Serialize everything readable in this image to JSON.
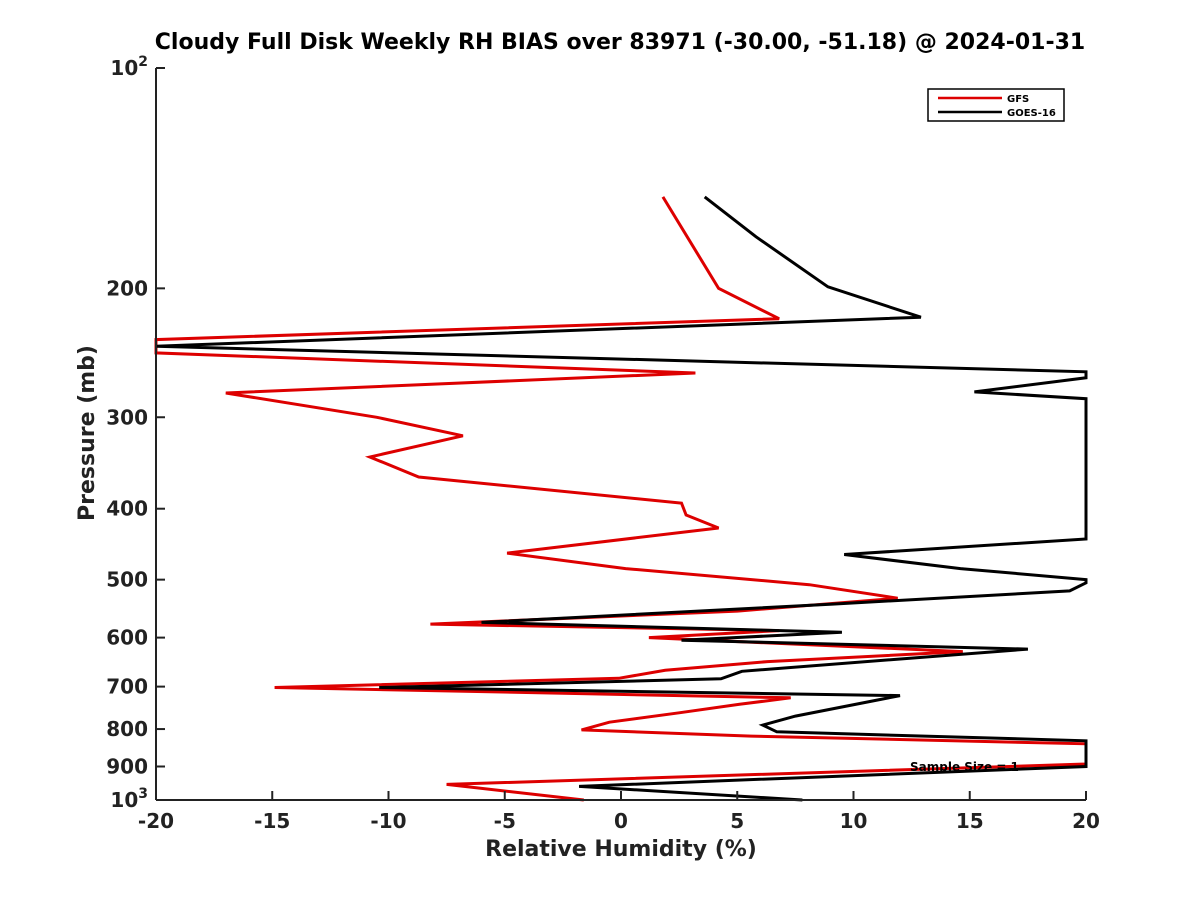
{
  "chart_data": {
    "type": "line",
    "title": "Cloudy Full Disk Weekly RH BIAS over 83971 (-30.00, -51.18) @ 2024-01-31",
    "xlabel": "Relative Humidity (%)",
    "ylabel": "Pressure (mb)",
    "xlim": [
      -20,
      20
    ],
    "ylim": [
      100,
      1000
    ],
    "y_scale": "log",
    "y_reversed": true,
    "x_ticks": [
      "-20",
      "-15",
      "-10",
      "-5",
      "0",
      "5",
      "10",
      "15",
      "20"
    ],
    "y_ticks": [
      {
        "value": 100,
        "base": "10",
        "exp": "2"
      },
      {
        "value": 200,
        "label": "200"
      },
      {
        "value": 300,
        "label": "300"
      },
      {
        "value": 400,
        "label": "400"
      },
      {
        "value": 500,
        "label": "500"
      },
      {
        "value": 600,
        "label": "600"
      },
      {
        "value": 700,
        "label": "700"
      },
      {
        "value": 800,
        "label": "800"
      },
      {
        "value": 900,
        "label": "900"
      },
      {
        "value": 1000,
        "base": "10",
        "exp": "3"
      }
    ],
    "grid": false,
    "legend_position": "top-right",
    "annotation": "Sample Size = 1",
    "series": [
      {
        "name": "GFS",
        "color": "#dd0000",
        "points": [
          [
            1.8,
            150
          ],
          [
            4.2,
            200
          ],
          [
            6.8,
            220
          ],
          [
            -20,
            235
          ],
          [
            -20,
            245
          ],
          [
            3.2,
            261
          ],
          [
            -17,
            278
          ],
          [
            -10.5,
            300
          ],
          [
            -6.8,
            318
          ],
          [
            -10.8,
            340
          ],
          [
            -8.7,
            362
          ],
          [
            2.6,
            393
          ],
          [
            2.8,
            408
          ],
          [
            4.2,
            425
          ],
          [
            -4.9,
            460
          ],
          [
            0.2,
            483
          ],
          [
            8.1,
            508
          ],
          [
            11.9,
            530
          ],
          [
            5,
            552
          ],
          [
            -8.2,
            575
          ],
          [
            6.8,
            587
          ],
          [
            1.2,
            600
          ],
          [
            14.7,
            627
          ],
          [
            6.3,
            647
          ],
          [
            1.9,
            665
          ],
          [
            -0.1,
            682
          ],
          [
            -14.9,
            702
          ],
          [
            7.3,
            725
          ],
          [
            5.1,
            740
          ],
          [
            2.5,
            760
          ],
          [
            -0.5,
            783
          ],
          [
            -1.7,
            802
          ],
          [
            5.6,
            818
          ],
          [
            20,
            838
          ],
          [
            20,
            893
          ],
          [
            -7.5,
            952
          ],
          [
            -1.6,
            1000
          ]
        ]
      },
      {
        "name": "GOES-16",
        "color": "#000000",
        "points": [
          [
            3.6,
            150
          ],
          [
            5.8,
            170
          ],
          [
            8.9,
            199
          ],
          [
            12.9,
            219
          ],
          [
            -20,
            240
          ],
          [
            20,
            260
          ],
          [
            20,
            265
          ],
          [
            15.2,
            277
          ],
          [
            20,
            283
          ],
          [
            20,
            440
          ],
          [
            9.6,
            462
          ],
          [
            14.6,
            483
          ],
          [
            20,
            500
          ],
          [
            20,
            505
          ],
          [
            19.3,
            518
          ],
          [
            9.1,
            540
          ],
          [
            -6,
            572
          ],
          [
            9.5,
            590
          ],
          [
            2.6,
            605
          ],
          [
            17.5,
            622
          ],
          [
            5.2,
            667
          ],
          [
            4.3,
            683
          ],
          [
            -10.4,
            702
          ],
          [
            12,
            720
          ],
          [
            7.5,
            768
          ],
          [
            6.1,
            790
          ],
          [
            6.7,
            807
          ],
          [
            20,
            830
          ],
          [
            20,
            900
          ],
          [
            -1.8,
            958
          ],
          [
            7.8,
            1000
          ]
        ]
      }
    ]
  }
}
